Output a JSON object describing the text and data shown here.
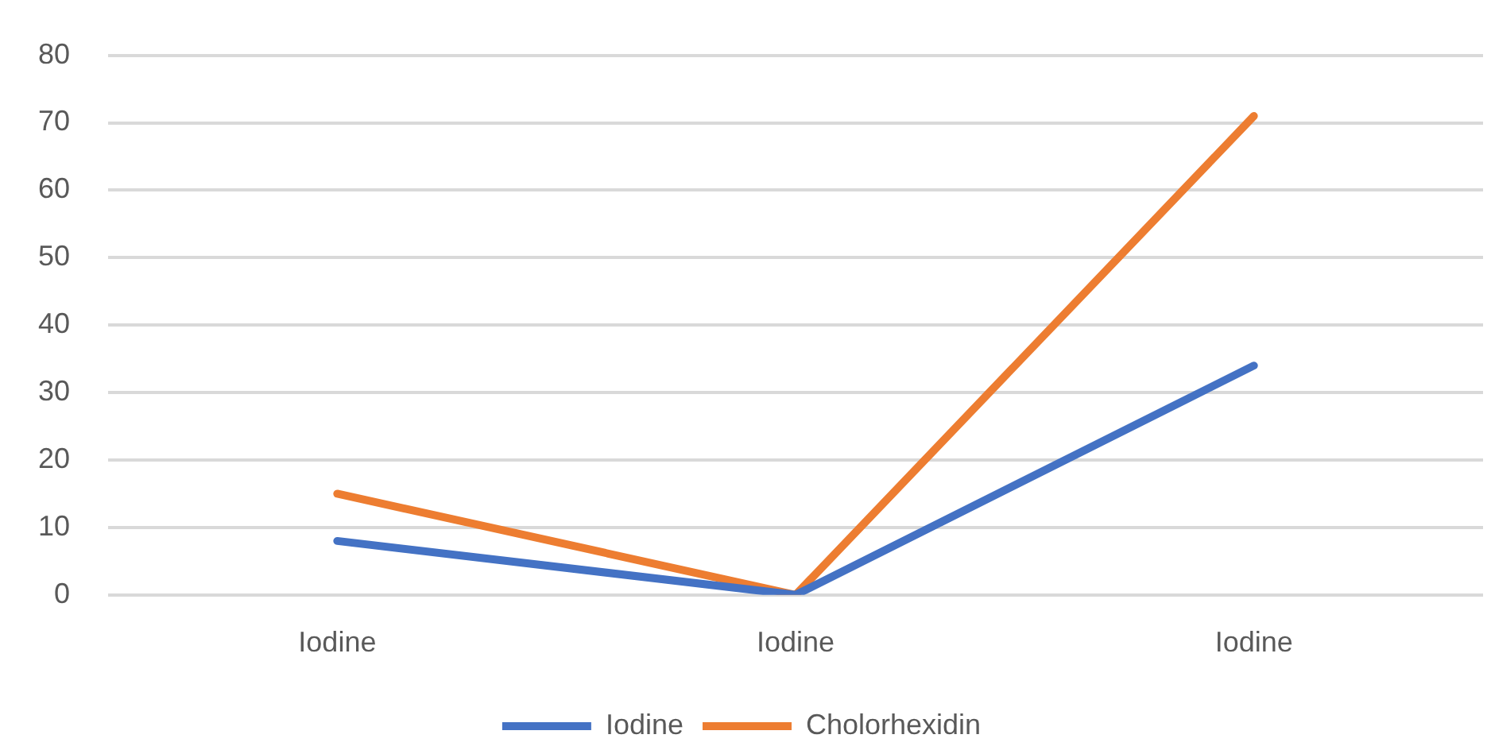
{
  "chart_data": {
    "type": "line",
    "categories": [
      "Iodine",
      "Iodine",
      "Iodine"
    ],
    "series": [
      {
        "name": "Iodine",
        "color": "#4472c4",
        "values": [
          8,
          0,
          34
        ]
      },
      {
        "name": "Cholorhexidin",
        "color": "#ed7d31",
        "values": [
          15,
          0,
          71
        ]
      }
    ],
    "ylim": [
      0,
      80
    ],
    "yticks": [
      0,
      10,
      20,
      30,
      40,
      50,
      60,
      70,
      80
    ],
    "grid": "y",
    "legend": "bottom",
    "marker": "none",
    "line_style": "solid"
  }
}
